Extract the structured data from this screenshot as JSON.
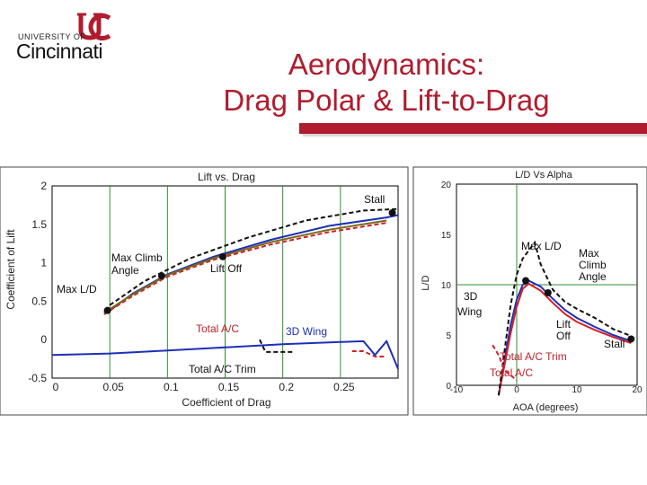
{
  "header": {
    "logo_top": "UNIVERSITY OF",
    "logo_name": "Cincinnati",
    "title_line1": "Aerodynamics:",
    "title_line2": "Drag Polar & Lift-to-Drag",
    "brand_color": "#b01c2e"
  },
  "chart_data": [
    {
      "type": "line",
      "title": "Lift vs. Drag",
      "xlabel": "Coefficient of Drag",
      "ylabel": "Coefficient of Lift",
      "xlim": [
        0,
        0.3
      ],
      "ylim": [
        -0.5,
        2
      ],
      "x_ticks": [
        "0",
        "0.05",
        "0.1",
        "0.15",
        "0.2",
        "0.25"
      ],
      "x_tick_values": [
        0,
        0.05,
        0.1,
        0.15,
        0.2,
        0.25
      ],
      "y_ticks": [
        "2",
        "1.5",
        "1",
        "0.5",
        "0",
        "-0.5"
      ],
      "y_tick_values": [
        2,
        1.5,
        1,
        0.5,
        0,
        -0.5
      ],
      "grid": "vertical-major",
      "series": [
        {
          "color": "#1d2fb8",
          "dash": "solid",
          "x": [
            0.05,
            0.07,
            0.1,
            0.14,
            0.19,
            0.24,
            0.29,
            0.3
          ],
          "y": [
            0.38,
            0.6,
            0.85,
            1.08,
            1.3,
            1.48,
            1.59,
            1.62
          ]
        },
        {
          "color": "#d0212a",
          "dash": "dashed",
          "x": [
            0.045,
            0.07,
            0.1,
            0.14,
            0.19,
            0.24,
            0.29
          ],
          "y": [
            0.33,
            0.57,
            0.82,
            1.04,
            1.24,
            1.4,
            1.52
          ]
        },
        {
          "color": "#111111",
          "dash": "dashed",
          "x": [
            0.05,
            0.08,
            0.12,
            0.17,
            0.22,
            0.27,
            0.3
          ],
          "y": [
            0.45,
            0.76,
            1.06,
            1.33,
            1.55,
            1.68,
            1.7
          ]
        },
        {
          "color": "#7a6a1a",
          "dash": "solid",
          "x": [
            0.045,
            0.07,
            0.1,
            0.14,
            0.19,
            0.24,
            0.29
          ],
          "y": [
            0.35,
            0.59,
            0.84,
            1.06,
            1.27,
            1.43,
            1.55
          ]
        },
        {
          "color": "#1d2fb8",
          "dash": "solid",
          "x": [
            0.0,
            0.05,
            0.1,
            0.15,
            0.2,
            0.25,
            0.27,
            0.28,
            0.29,
            0.3
          ],
          "y": [
            -0.2,
            -0.18,
            -0.14,
            -0.1,
            -0.06,
            -0.03,
            -0.02,
            -0.2,
            -0.02,
            -0.38
          ]
        },
        {
          "color": "#111111",
          "dash": "dashed",
          "x": [
            0.18,
            0.185,
            0.2,
            0.21
          ],
          "y": [
            0.0,
            -0.16,
            -0.16,
            -0.16
          ]
        },
        {
          "color": "#d0212a",
          "dash": "dashed",
          "x": [
            0.26,
            0.27,
            0.28,
            0.29
          ],
          "y": [
            -0.15,
            -0.15,
            -0.22,
            -0.22
          ]
        }
      ],
      "markers": [
        {
          "x": 0.295,
          "y": 1.65
        },
        {
          "x": 0.148,
          "y": 1.08
        },
        {
          "x": 0.095,
          "y": 0.83
        },
        {
          "x": 0.048,
          "y": 0.38
        }
      ],
      "annotations": [
        "Stall",
        "Max Climb Angle",
        "Lift Off",
        "Max L/D",
        "Total A/C",
        "3D Wing",
        "Total A/C Trim"
      ]
    },
    {
      "type": "line",
      "title": "L/D Vs Alpha",
      "xlabel": "AOA (degrees)",
      "ylabel": "L/D",
      "xlim": [
        -10,
        20
      ],
      "ylim": [
        0,
        20
      ],
      "x_ticks": [
        "-10",
        "0",
        "10",
        "20"
      ],
      "x_tick_values": [
        -10,
        0,
        10,
        20
      ],
      "y_ticks": [
        "20",
        "15",
        "10",
        "5",
        "0"
      ],
      "y_tick_values": [
        20,
        15,
        10,
        5,
        0
      ],
      "grid": "crosshair",
      "series": [
        {
          "color": "#1d2fb8",
          "dash": "solid",
          "x": [
            -3,
            -1,
            0,
            1,
            2,
            4,
            6,
            8,
            10,
            13,
            16,
            19
          ],
          "y": [
            -1,
            6,
            8.5,
            10,
            10.4,
            9.8,
            8.6,
            7.5,
            6.7,
            5.8,
            5,
            4.4
          ]
        },
        {
          "color": "#d0212a",
          "dash": "solid",
          "x": [
            -3,
            -1,
            0,
            1,
            2,
            4,
            6,
            8,
            10,
            13,
            16,
            19
          ],
          "y": [
            -1,
            5.2,
            7.8,
            9.6,
            10.1,
            9.4,
            8.2,
            7.1,
            6.3,
            5.5,
            4.8,
            4.2
          ]
        },
        {
          "color": "#111111",
          "dash": "dashed",
          "x": [
            -3,
            -1,
            0,
            1,
            2,
            3,
            4,
            6,
            8,
            10,
            13,
            16,
            19
          ],
          "y": [
            -1,
            8,
            11,
            12.6,
            13.4,
            14.2,
            12,
            9.5,
            8.3,
            7.6,
            6.7,
            5.6,
            4.9
          ]
        },
        {
          "color": "#d0212a",
          "dash": "dashed",
          "x": [
            -4,
            -3,
            -2,
            0
          ],
          "y": [
            4,
            3,
            1.5,
            0.5
          ]
        }
      ],
      "markers": [
        {
          "x": 1.5,
          "y": 10.4
        },
        {
          "x": 5.2,
          "y": 9.2
        },
        {
          "x": 19,
          "y": 4.6
        }
      ],
      "annotations": [
        "Max L/D",
        "Max Climb Angle",
        "3D Wing",
        "Lift Off",
        "Stall",
        "Total A/C Trim",
        "Total A/C"
      ]
    }
  ]
}
